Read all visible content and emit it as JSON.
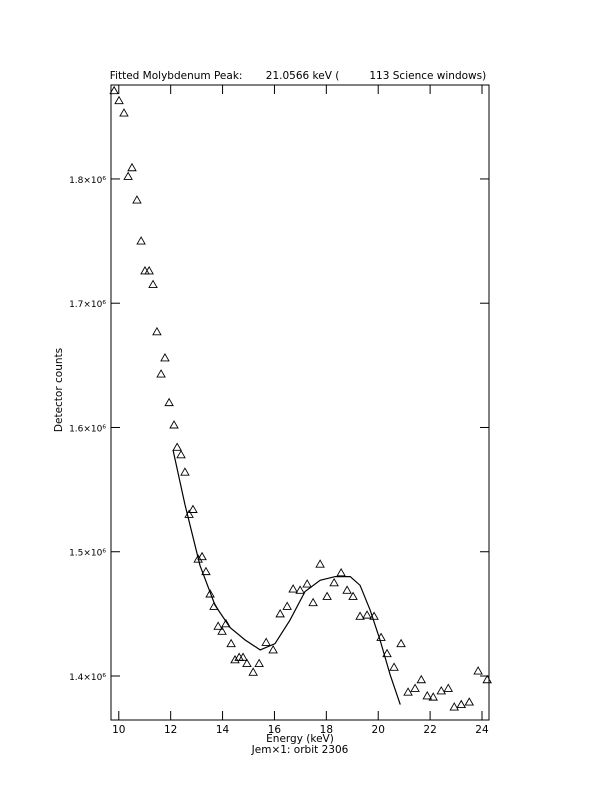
{
  "chart_data": {
    "type": "scatter",
    "title": "Fitted Molybdenum Peak:       21.0566 keV (         113 Science windows)",
    "x_label": "Energy (keV)",
    "subtitle": "Jem×1: orbit 2306",
    "y_label": "Detector counts",
    "xlim": [
      9.7,
      24.27
    ],
    "ylim": [
      1364600,
      1875600
    ],
    "xticks": [
      10,
      12,
      14,
      16,
      18,
      20,
      22,
      24
    ],
    "yticks": [
      {
        "value": 1400000,
        "label": "1.4×10⁶"
      },
      {
        "value": 1500000,
        "label": "1.5×10⁶"
      },
      {
        "value": 1600000,
        "label": "1.6×10⁶"
      },
      {
        "value": 1700000,
        "label": "1.7×10⁶"
      },
      {
        "value": 1800000,
        "label": "1.8×10⁶"
      }
    ],
    "color": "#000000",
    "points": {
      "x": [
        9.82,
        10.01,
        10.2,
        10.36,
        10.51,
        10.7,
        10.86,
        11.01,
        11.17,
        11.32,
        11.47,
        11.63,
        11.78,
        11.94,
        12.13,
        12.25,
        12.4,
        12.55,
        12.71,
        12.86,
        13.06,
        13.21,
        13.36,
        13.52,
        13.67,
        13.83,
        13.98,
        14.13,
        14.33,
        14.48,
        14.64,
        14.79,
        14.94,
        15.18,
        15.41,
        15.68,
        15.95,
        16.22,
        16.49,
        16.72,
        16.99,
        17.26,
        17.49,
        17.76,
        18.03,
        18.3,
        18.57,
        18.8,
        19.03,
        19.3,
        19.57,
        19.84,
        20.11,
        20.34,
        20.61,
        20.88,
        21.15,
        21.42,
        21.66,
        21.89,
        22.12,
        22.43,
        22.7,
        22.93,
        23.2,
        23.51,
        23.85,
        24.2
      ],
      "y": [
        1871000,
        1863000,
        1853000,
        1802000,
        1809000,
        1783000,
        1750000,
        1726000,
        1726000,
        1715000,
        1677000,
        1643000,
        1656000,
        1620000,
        1602000,
        1584000,
        1578000,
        1564000,
        1530000,
        1534000,
        1494000,
        1496000,
        1484000,
        1466000,
        1456000,
        1440000,
        1436000,
        1442000,
        1426000,
        1413000,
        1415000,
        1415000,
        1410000,
        1403000,
        1410000,
        1427000,
        1421000,
        1450000,
        1456000,
        1470000,
        1469000,
        1474000,
        1459000,
        1490000,
        1464000,
        1475000,
        1483000,
        1469000,
        1464000,
        1448000,
        1449000,
        1448000,
        1431000,
        1418000,
        1407000,
        1426000,
        1387000,
        1390000,
        1397000,
        1384000,
        1383000,
        1388000,
        1390000,
        1375000,
        1377000,
        1379000,
        1404000,
        1397000
      ]
    },
    "fit": {
      "x": [
        12.09,
        12.55,
        13.13,
        13.71,
        14.29,
        14.87,
        15.45,
        16.02,
        16.6,
        17.18,
        17.76,
        18.34,
        18.92,
        19.3,
        19.69,
        20.07,
        20.46,
        20.85
      ],
      "y": [
        1582000,
        1538000,
        1489000,
        1457000,
        1439000,
        1429000,
        1421000,
        1426000,
        1445000,
        1468000,
        1477000,
        1480000,
        1480000,
        1473000,
        1453000,
        1429000,
        1401000,
        1377000
      ]
    }
  }
}
